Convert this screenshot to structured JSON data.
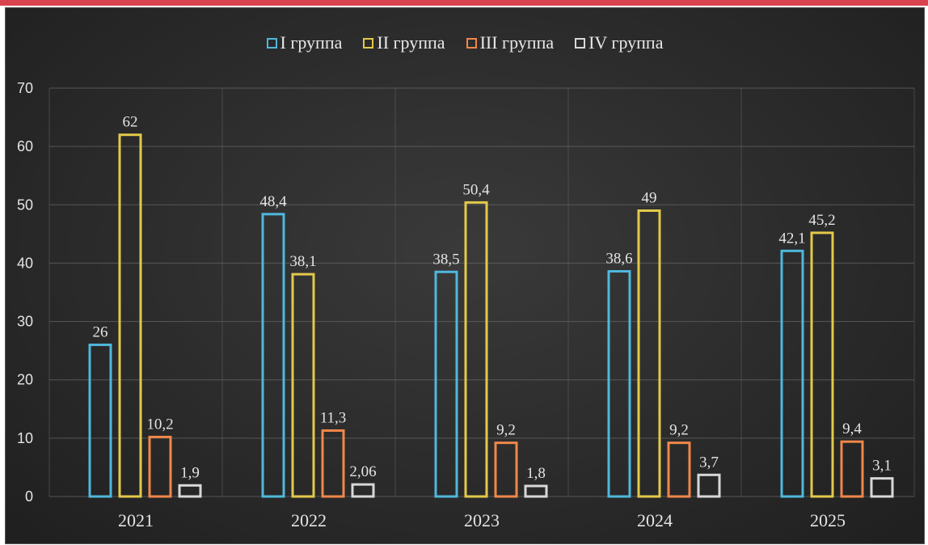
{
  "chart_data": {
    "type": "bar",
    "categories": [
      "2021",
      "2022",
      "2023",
      "2024",
      "2025"
    ],
    "series": [
      {
        "name": "I группа",
        "color": "#4fb8dc",
        "values": [
          26,
          48.4,
          38.5,
          38.6,
          42.1
        ],
        "labels": [
          "26",
          "48,4",
          "38,5",
          "38,6",
          "42,1"
        ]
      },
      {
        "name": "II группа",
        "color": "#e3c94a",
        "values": [
          62,
          38.1,
          50.4,
          49,
          45.2
        ],
        "labels": [
          "62",
          "38,1",
          "50,4",
          "49",
          "45,2"
        ]
      },
      {
        "name": "III группа",
        "color": "#f0874a",
        "values": [
          10.2,
          11.3,
          9.2,
          9.2,
          9.4
        ],
        "labels": [
          "10,2",
          "11,3",
          "9,2",
          "9,2",
          "9,4"
        ]
      },
      {
        "name": "IV группа",
        "color": "#d8d8d8",
        "values": [
          1.9,
          2.06,
          1.8,
          3.7,
          3.1
        ],
        "labels": [
          "1,9",
          "2,06",
          "1,8",
          "3,7",
          "3,1"
        ]
      }
    ],
    "ylim": [
      0,
      70
    ],
    "yticks": [
      0,
      10,
      20,
      30,
      40,
      50,
      60,
      70
    ],
    "grid": true,
    "legend": "top-center",
    "title": "",
    "xlabel": "",
    "ylabel": ""
  }
}
